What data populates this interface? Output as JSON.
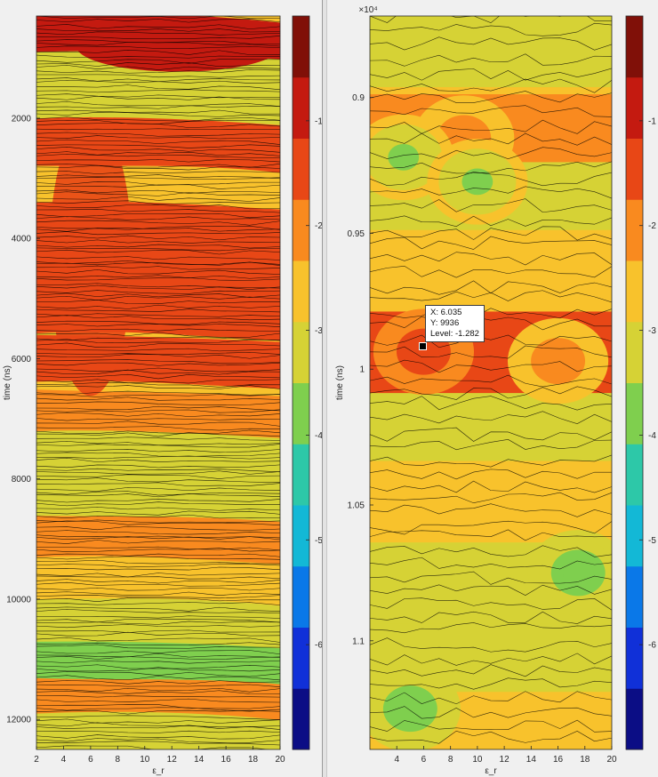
{
  "colors": {
    "colormap": [
      "#0b0d85",
      "#1030d8",
      "#0a78e8",
      "#13b8d6",
      "#2dc8a8",
      "#7fcf4e",
      "#d6d235",
      "#f8c22c",
      "#f98a1f",
      "#e84716",
      "#c41a10",
      "#801008"
    ],
    "contour_line": "#000000",
    "panel_background": "#f0f0f0",
    "plot_background": "#ffffff"
  },
  "chart_data": [
    {
      "type": "heatmap",
      "title": "",
      "xlabel": "ε_r",
      "ylabel": "time (ns)",
      "xlim": [
        2,
        20
      ],
      "ylim": [
        300,
        12500
      ],
      "y_reversed": true,
      "x_ticks": [
        "2",
        "4",
        "6",
        "8",
        "10",
        "12",
        "14",
        "16",
        "18",
        "20"
      ],
      "y_ticks": [
        "2000",
        "4000",
        "6000",
        "8000",
        "10000",
        "12000"
      ],
      "colorbar": {
        "clim": [
          -7,
          0
        ],
        "ticks": [
          "-1",
          "-2",
          "-3",
          "-4",
          "-5",
          "-6"
        ]
      },
      "contour_lines": true,
      "grid": false,
      "legend": "none",
      "bands": [
        {
          "t": 700,
          "level": -1.0
        },
        {
          "t": 1300,
          "level": -3.0
        },
        {
          "t": 1800,
          "level": -3.5
        },
        {
          "t": 2400,
          "level": -1.2
        },
        {
          "t": 3200,
          "level": -2.6
        },
        {
          "t": 3800,
          "level": -1.5
        },
        {
          "t": 4500,
          "level": -1.3
        },
        {
          "t": 5200,
          "level": -1.6
        },
        {
          "t": 6000,
          "level": -1.2
        },
        {
          "t": 6900,
          "level": -2.2
        },
        {
          "t": 7600,
          "level": -3.4
        },
        {
          "t": 8300,
          "level": -3.0
        },
        {
          "t": 9000,
          "level": -1.8
        },
        {
          "t": 9700,
          "level": -2.6
        },
        {
          "t": 10400,
          "level": -3.0
        },
        {
          "t": 11100,
          "level": -3.6
        },
        {
          "t": 11700,
          "level": -2.0
        },
        {
          "t": 12300,
          "level": -3.2
        }
      ]
    },
    {
      "type": "heatmap",
      "title": "",
      "xlabel": "ε_r",
      "ylabel": "time (ns)",
      "xlim": [
        2,
        20
      ],
      "ylim": [
        8700,
        11400
      ],
      "y_reversed": true,
      "y_exponent": "×10⁴",
      "x_ticks": [
        "4",
        "6",
        "8",
        "10",
        "12",
        "14",
        "16",
        "18",
        "20"
      ],
      "y_ticks": [
        "0.9",
        "0.95",
        "1",
        "1.05",
        "1.1"
      ],
      "colorbar": {
        "clim": [
          -7,
          0
        ],
        "ticks": [
          "-1",
          "-2",
          "-3",
          "-4",
          "-5",
          "-6"
        ]
      },
      "contour_lines": true,
      "grid": false,
      "legend": "none",
      "features": [
        {
          "x": 9,
          "t": 9150,
          "level": -1.8
        },
        {
          "x": 4.5,
          "t": 9220,
          "level": -3.7
        },
        {
          "x": 10,
          "t": 9310,
          "level": -3.8
        },
        {
          "x": 6,
          "t": 9936,
          "level": -1.282
        },
        {
          "x": 16,
          "t": 9970,
          "level": -1.8
        },
        {
          "x": 17.5,
          "t": 10750,
          "level": -4.0
        },
        {
          "x": 5,
          "t": 11250,
          "level": -4.0
        }
      ],
      "datatip": {
        "x": 6.035,
        "y": 9936,
        "level": -1.282
      }
    }
  ],
  "datatip_text": {
    "x": "X: 6.035",
    "y": "Y: 9936",
    "level": "Level: -1.282"
  }
}
